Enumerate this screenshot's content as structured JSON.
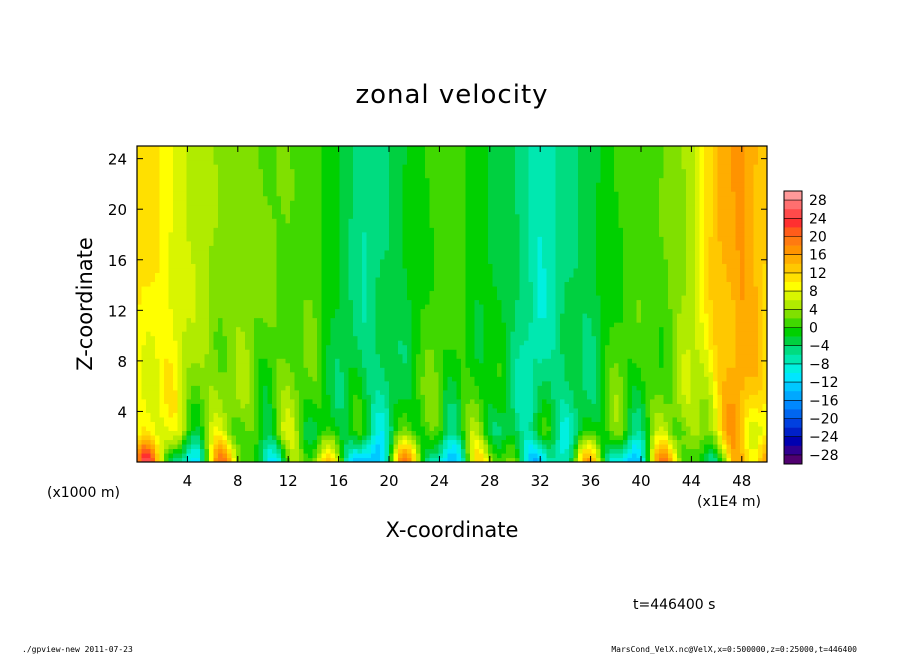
{
  "chart_data": {
    "type": "heatmap",
    "title": "zonal velocity",
    "xlabel": "X-coordinate",
    "ylabel": "Z-coordinate",
    "x_unit_note": "(x1E4 m)",
    "z_unit_note": "(x1000 m)",
    "xlim": [
      0,
      50
    ],
    "ylim": [
      0,
      25
    ],
    "x_ticks": [
      "4",
      "8",
      "12",
      "16",
      "20",
      "24",
      "28",
      "32",
      "36",
      "40",
      "44",
      "48"
    ],
    "y_ticks": [
      "4",
      "8",
      "12",
      "16",
      "20",
      "24"
    ],
    "x_tick_values": [
      4,
      8,
      12,
      16,
      20,
      24,
      28,
      32,
      36,
      40,
      44,
      48
    ],
    "y_tick_values": [
      4,
      8,
      12,
      16,
      20,
      24
    ],
    "colorbar": {
      "labels": [
        "28",
        "24",
        "20",
        "16",
        "12",
        "8",
        "4",
        "0",
        "−4",
        "−8",
        "−12",
        "−16",
        "−20",
        "−24",
        "−28"
      ],
      "levels": [
        30,
        28,
        26,
        24,
        22,
        20,
        18,
        16,
        14,
        12,
        10,
        8,
        6,
        4,
        2,
        0,
        -2,
        -4,
        -6,
        -8,
        -10,
        -12,
        -14,
        -16,
        -18,
        -20,
        -22,
        -24,
        -26,
        -28,
        -30
      ],
      "colors": [
        "#ff9999",
        "#ff6f6f",
        "#ff4a4a",
        "#ff3030",
        "#ff5c1a",
        "#ff7a10",
        "#ff9300",
        "#ffad00",
        "#ffc800",
        "#ffe000",
        "#ffff00",
        "#d9f500",
        "#b0eb00",
        "#80e000",
        "#40d800",
        "#00d000",
        "#00d040",
        "#00dc80",
        "#00e8b0",
        "#00f0e0",
        "#00e6ff",
        "#00c8ff",
        "#00a8ff",
        "#0088ff",
        "#0066f0",
        "#0040e0",
        "#0020c8",
        "#0000b0",
        "#300090",
        "#500070"
      ]
    },
    "vertical_bands_x_speed_profile": [
      {
        "x": 0,
        "value": 11
      },
      {
        "x": 2,
        "value": 10
      },
      {
        "x": 4,
        "value": 6
      },
      {
        "x": 6,
        "value": 4
      },
      {
        "x": 8,
        "value": 3
      },
      {
        "x": 10,
        "value": 2
      },
      {
        "x": 12,
        "value": 2
      },
      {
        "x": 14,
        "value": 1
      },
      {
        "x": 16,
        "value": -2
      },
      {
        "x": 18,
        "value": -6
      },
      {
        "x": 20,
        "value": -4
      },
      {
        "x": 22,
        "value": -1
      },
      {
        "x": 24,
        "value": 1
      },
      {
        "x": 26,
        "value": 0
      },
      {
        "x": 28,
        "value": -2
      },
      {
        "x": 30,
        "value": -4
      },
      {
        "x": 32,
        "value": -8
      },
      {
        "x": 34,
        "value": -5
      },
      {
        "x": 36,
        "value": -3
      },
      {
        "x": 38,
        "value": 0
      },
      {
        "x": 40,
        "value": 1
      },
      {
        "x": 42,
        "value": 2
      },
      {
        "x": 44,
        "value": 5
      },
      {
        "x": 46,
        "value": 14
      },
      {
        "x": 48,
        "value": 17
      },
      {
        "x": 50,
        "value": 12
      }
    ],
    "time_label": "t=446400 s"
  },
  "footer": {
    "left": "./gpview-new  2011-07-23",
    "right": "MarsCond_VelX.nc@VelX,x=0:500000,z=0:25000,t=446400"
  }
}
